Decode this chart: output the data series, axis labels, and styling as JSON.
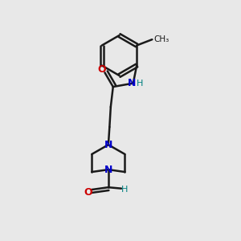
{
  "bg_color": "#e8e8e8",
  "bond_color": "#1a1a1a",
  "N_color": "#0000cc",
  "O_color": "#cc0000",
  "H_color": "#008080",
  "line_width": 1.8,
  "fig_width": 3.0,
  "fig_height": 3.0,
  "dpi": 100,
  "xlim": [
    0,
    10
  ],
  "ylim": [
    0,
    10
  ]
}
